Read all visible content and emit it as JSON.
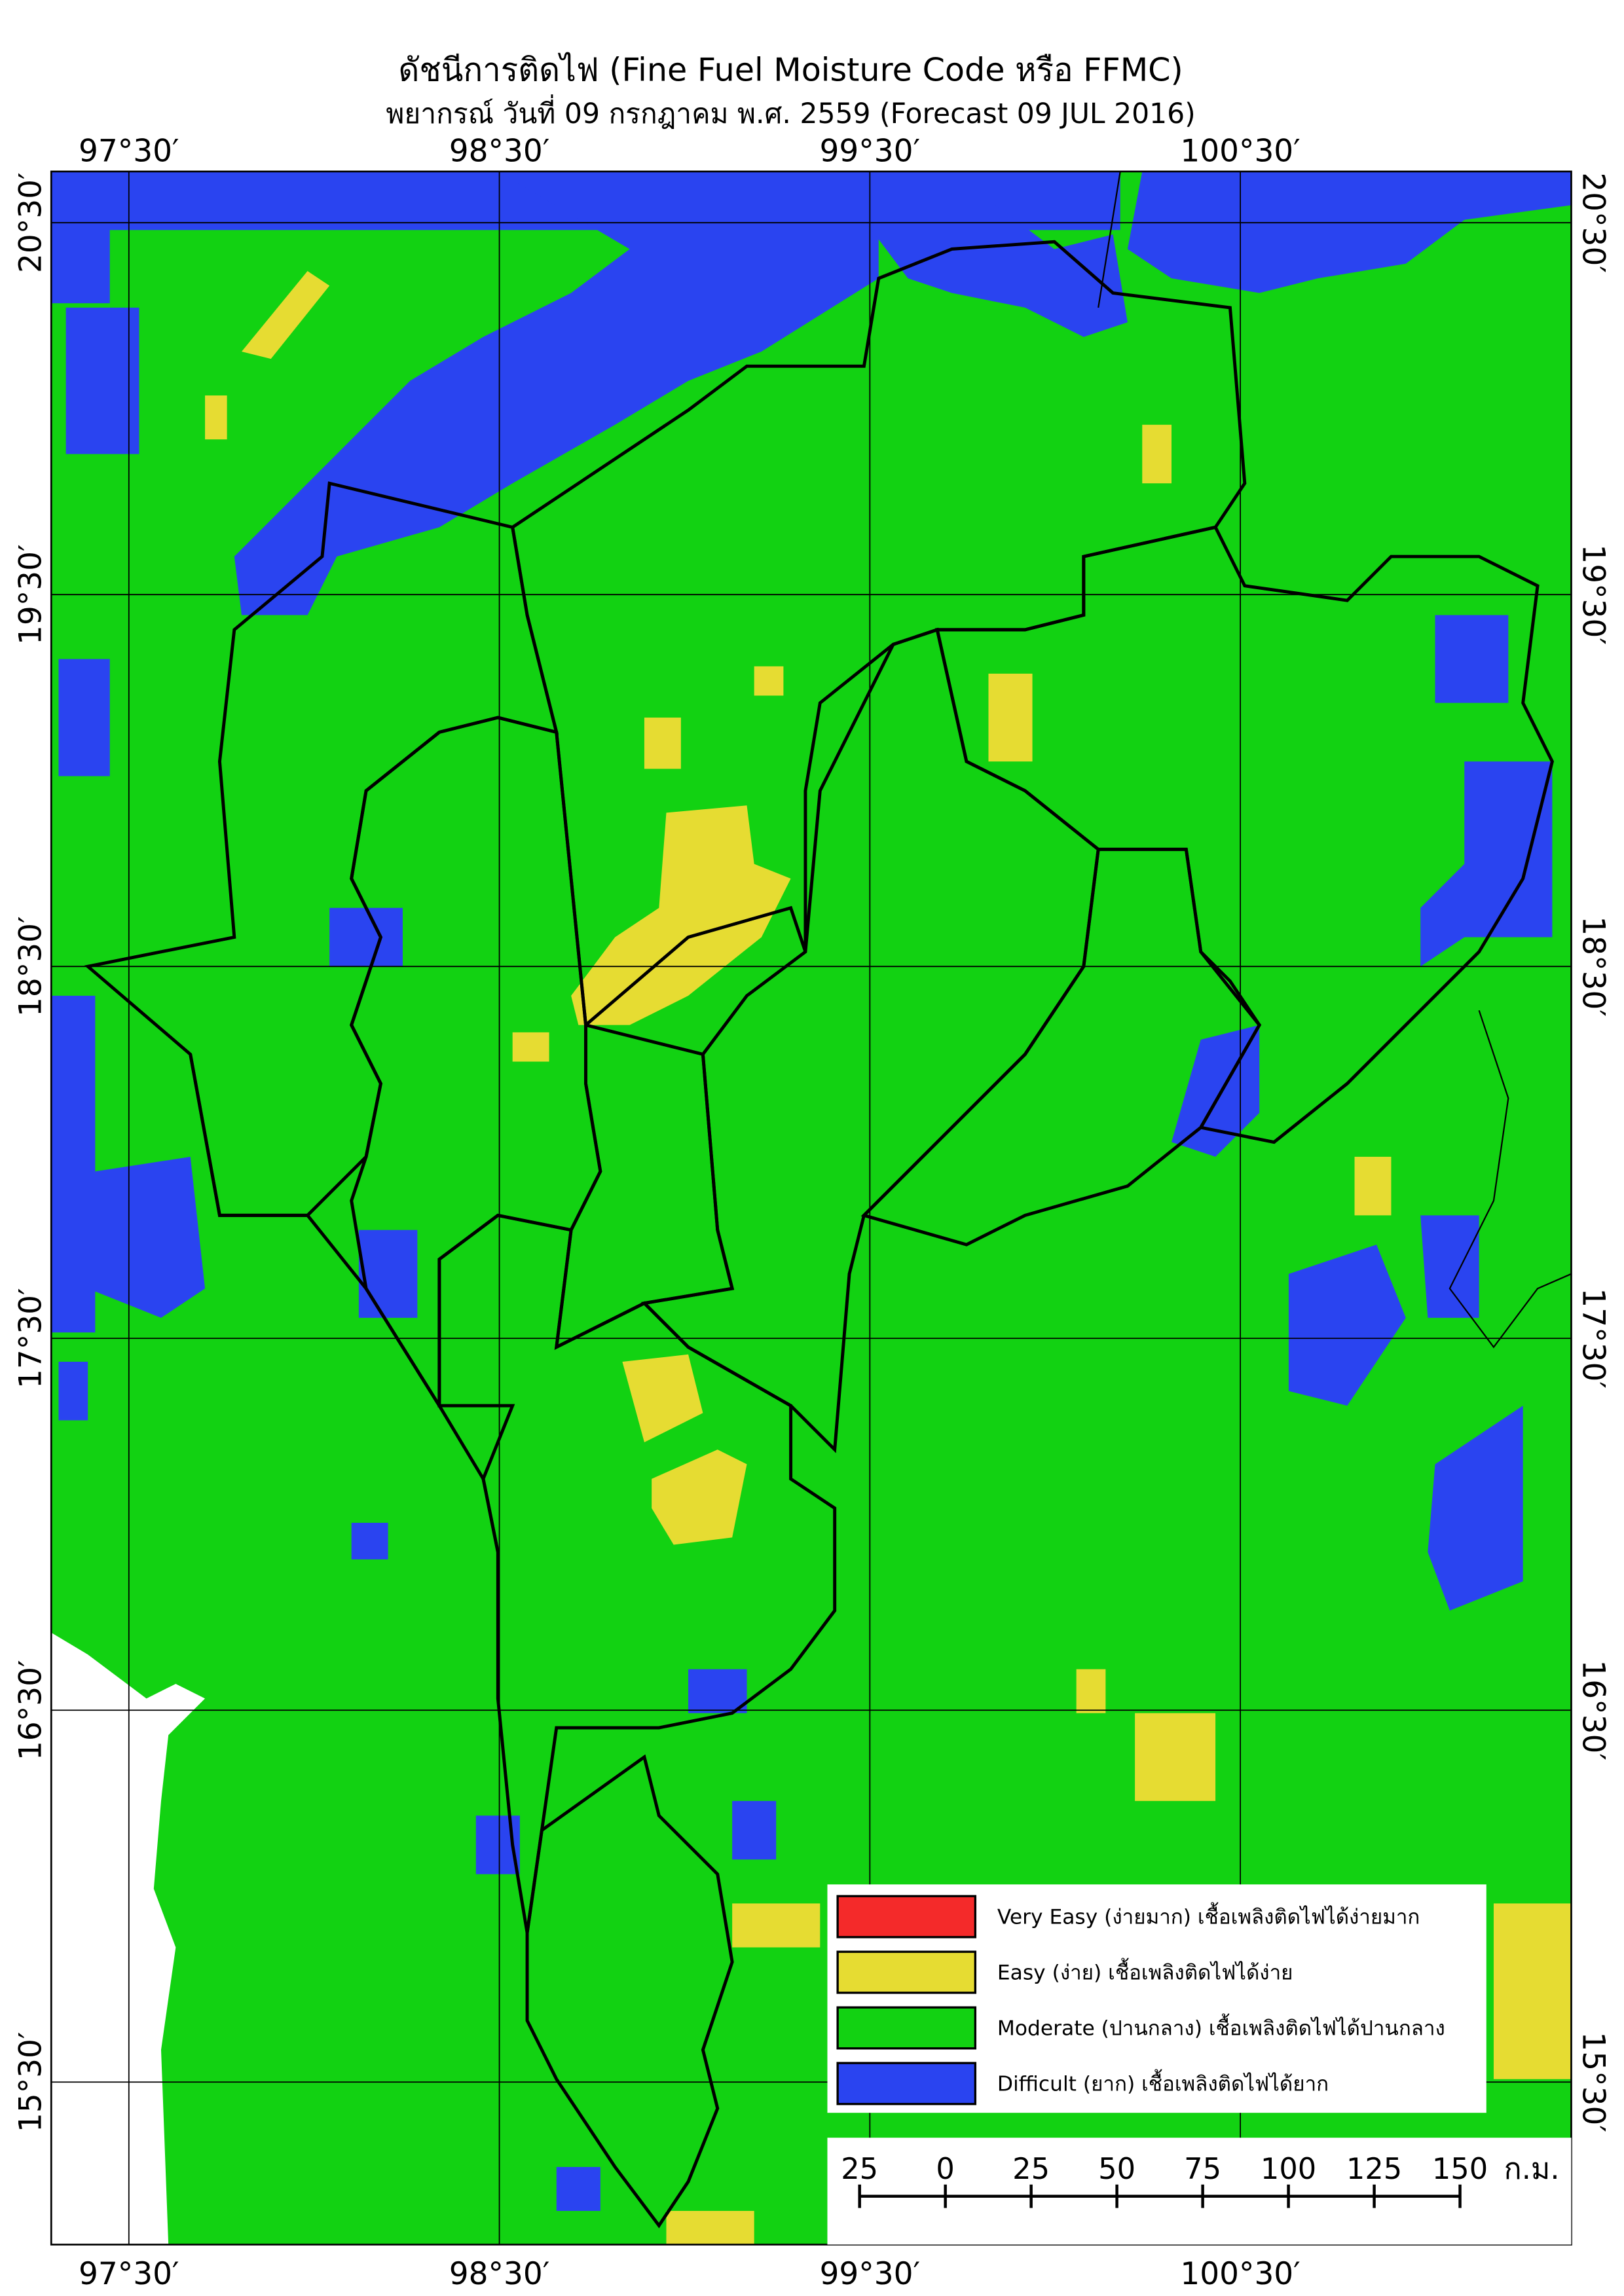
{
  "header": {
    "title": "ดัชนีการติดไฟ (Fine Fuel Moisture Code หรือ FFMC)",
    "subtitle": "พยากรณ์ วันที่ 09 กรกฎาคม พ.ศ. 2559 (Forecast 09 JUL 2016)"
  },
  "map": {
    "lon_labels": [
      "97°30′",
      "98°30′",
      "99°30′",
      "100°30′"
    ],
    "lat_labels": [
      "20°30′",
      "19°30′",
      "18°30′",
      "17°30′",
      "16°30′",
      "15°30′"
    ]
  },
  "legend": {
    "items": [
      {
        "label": "Very Easy (ง่ายมาก) เชื้อเพลิงติดไฟได้ง่ายมาก",
        "color": "#f42a2a"
      },
      {
        "label": "Easy (ง่าย) เชื้อเพลิงติดไฟได้ง่าย",
        "color": "#e6dc32"
      },
      {
        "label": "Moderate (ปานกลาง) เชื้อเพลิงติดไฟได้ปานกลาง",
        "color": "#12d212"
      },
      {
        "label": "Difficult (ยาก) เชื้อเพลิงติดไฟได้ยาก",
        "color": "#2a44f0"
      }
    ]
  },
  "scale_bar": {
    "labels": [
      "25",
      "0",
      "25",
      "50",
      "75",
      "100",
      "125",
      "150"
    ],
    "unit": "ก.ม."
  }
}
